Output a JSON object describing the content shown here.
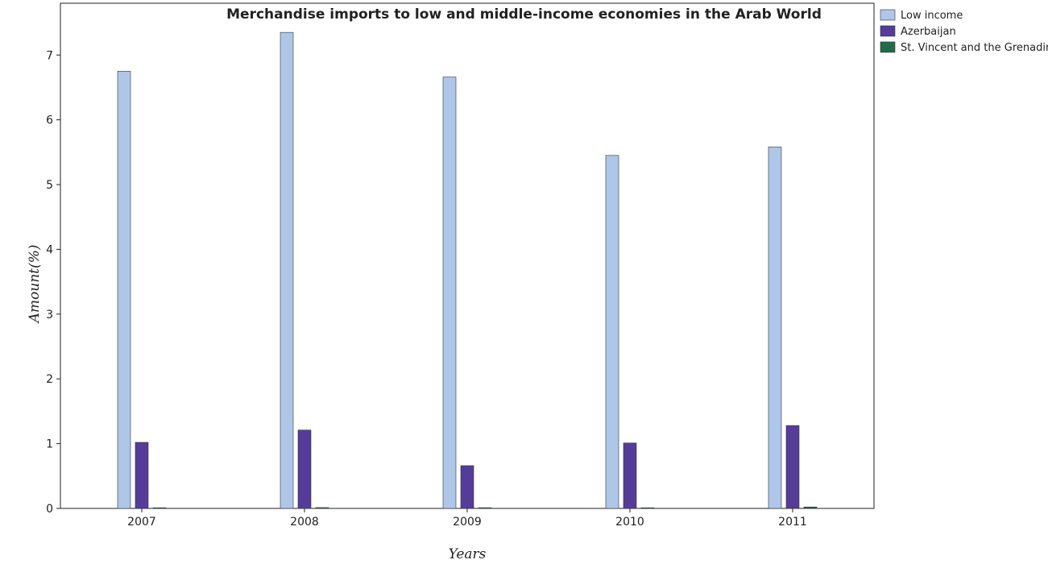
{
  "chart_data": {
    "type": "bar",
    "title": "Merchandise imports to low and middle-income economies in the Arab World",
    "xlabel": "Years",
    "ylabel": "Amount(%)",
    "categories": [
      "2007",
      "2008",
      "2009",
      "2010",
      "2011"
    ],
    "ylim": [
      0,
      7.8
    ],
    "yticks": [
      0,
      1,
      2,
      3,
      4,
      5,
      6,
      7
    ],
    "series": [
      {
        "name": "Low income",
        "color": "#aec7e8",
        "values": [
          6.75,
          7.35,
          6.66,
          5.45,
          5.58
        ]
      },
      {
        "name": "Azerbaijan",
        "color": "#553c9a",
        "values": [
          1.02,
          1.21,
          0.66,
          1.01,
          1.28
        ]
      },
      {
        "name": "St. Vincent and the Grenadines",
        "color": "#1f6b4a",
        "values": [
          0.01,
          0.013,
          0.011,
          0.01,
          0.022
        ]
      }
    ],
    "legend_position": "top-right",
    "grid": false
  }
}
